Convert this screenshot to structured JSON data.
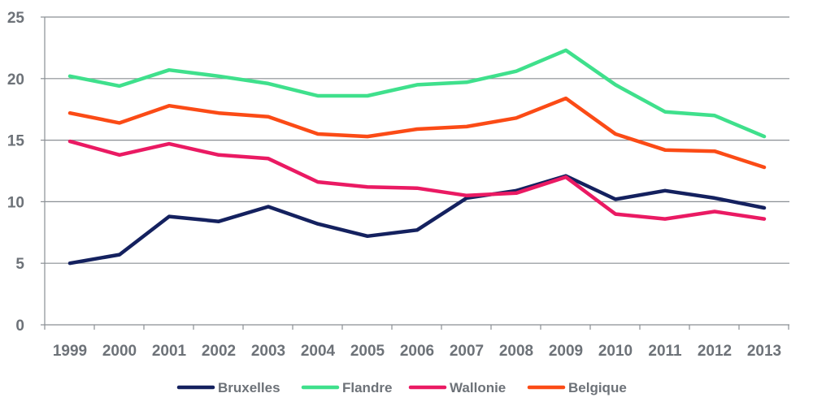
{
  "chart_data": {
    "type": "line",
    "title": "",
    "xlabel": "",
    "ylabel": "",
    "x": [
      "1999",
      "2000",
      "2001",
      "2002",
      "2003",
      "2004",
      "2005",
      "2006",
      "2007",
      "2008",
      "2009",
      "2010",
      "2011",
      "2012",
      "2013"
    ],
    "ylim": [
      0,
      25
    ],
    "yticks": [
      0,
      5,
      10,
      15,
      20,
      25
    ],
    "grid": "horizontal",
    "legend_position": "bottom",
    "series": [
      {
        "name": "Bruxelles",
        "color": "#14215f",
        "values": [
          5.0,
          5.7,
          8.8,
          8.4,
          9.6,
          8.2,
          7.2,
          7.7,
          10.3,
          10.9,
          12.1,
          10.2,
          10.9,
          10.3,
          9.5
        ]
      },
      {
        "name": "Flandre",
        "color": "#3fe08c",
        "values": [
          20.2,
          19.4,
          20.7,
          20.2,
          19.6,
          18.6,
          18.6,
          19.5,
          19.7,
          20.6,
          22.3,
          19.5,
          17.3,
          17.0,
          15.3
        ]
      },
      {
        "name": "Wallonie",
        "color": "#ea1a63",
        "values": [
          14.9,
          13.8,
          14.7,
          13.8,
          13.5,
          11.6,
          11.2,
          11.1,
          10.5,
          10.7,
          12.0,
          9.0,
          8.6,
          9.2,
          8.6
        ]
      },
      {
        "name": "Belgique",
        "color": "#fb4b16",
        "values": [
          17.2,
          16.4,
          17.8,
          17.2,
          16.9,
          15.5,
          15.3,
          15.9,
          16.1,
          16.8,
          18.4,
          15.5,
          14.2,
          14.1,
          12.8
        ]
      }
    ]
  }
}
